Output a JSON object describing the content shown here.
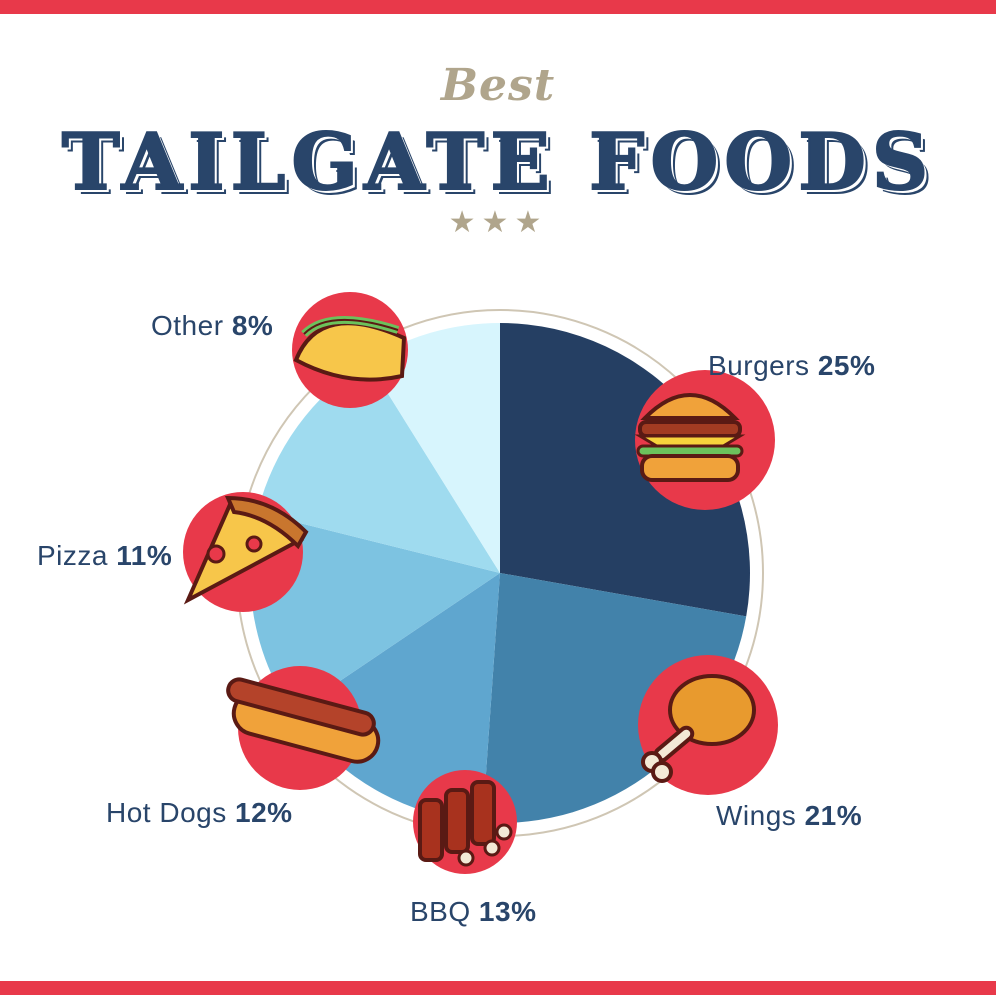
{
  "header": {
    "subtitle": "Best",
    "title": "TAILGATE FOODS",
    "stars": "★★★"
  },
  "colors": {
    "stripe": "#e8394a",
    "title": "#29456a",
    "accent": "#b0a58c",
    "badge": "#e8394a"
  },
  "chart_data": {
    "type": "pie",
    "title": "TAILGATE FOODS",
    "series": [
      {
        "name": "Burgers",
        "value": 25,
        "label": "25%",
        "color": "#253f63",
        "icon": "burger-icon"
      },
      {
        "name": "Wings",
        "value": 21,
        "label": "21%",
        "color": "#4282aa",
        "icon": "chicken-leg-icon"
      },
      {
        "name": "BBQ",
        "value": 13,
        "label": "13%",
        "color": "#5fa6cf",
        "icon": "ribs-icon"
      },
      {
        "name": "Hot Dogs",
        "value": 12,
        "label": "12%",
        "color": "#7dc3e1",
        "icon": "hot-dog-icon"
      },
      {
        "name": "Pizza",
        "value": 11,
        "label": "11%",
        "color": "#9fdbef",
        "icon": "pizza-icon"
      },
      {
        "name": "Other",
        "value": 8,
        "label": "8%",
        "color": "#d7f5fd",
        "icon": "taco-icon"
      }
    ]
  }
}
